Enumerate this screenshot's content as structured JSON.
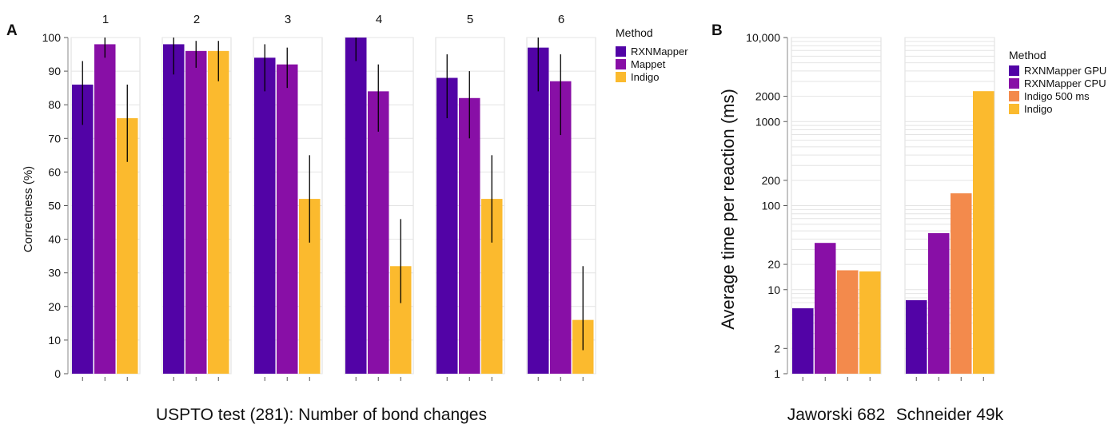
{
  "panels": {
    "a": {
      "letter": "A"
    },
    "b": {
      "letter": "B"
    }
  },
  "chart_data": [
    {
      "type": "bar",
      "title": "",
      "xlabel": "USPTO test (281): Number of bond changes",
      "ylabel": "Correctness (%)",
      "ylim": [
        0,
        100
      ],
      "yticks": [
        0,
        10,
        20,
        30,
        40,
        50,
        60,
        70,
        80,
        90,
        100
      ],
      "grid": true,
      "legend": {
        "title": "Method",
        "position": "right"
      },
      "facets": [
        "1",
        "2",
        "3",
        "4",
        "5",
        "6"
      ],
      "series": [
        {
          "name": "RXNMapper",
          "color": "#5203a6",
          "values": [
            86,
            98,
            94,
            100,
            88,
            97
          ],
          "err_low": [
            74,
            89,
            84,
            93,
            76,
            84
          ],
          "err_high": [
            93,
            100,
            98,
            100,
            95,
            100
          ]
        },
        {
          "name": "Mappet",
          "color": "#880fa6",
          "values": [
            98,
            96,
            92,
            84,
            82,
            87
          ],
          "err_low": [
            94,
            91,
            85,
            72,
            70,
            71
          ],
          "err_high": [
            100,
            99,
            97,
            92,
            90,
            95
          ]
        },
        {
          "name": "Indigo",
          "color": "#fbba2e",
          "values": [
            76,
            96,
            52,
            32,
            52,
            16
          ],
          "err_low": [
            63,
            87,
            39,
            21,
            39,
            7
          ],
          "err_high": [
            86,
            99,
            65,
            46,
            65,
            32
          ]
        }
      ]
    },
    {
      "type": "bar",
      "title": "",
      "xlabel": "",
      "ylabel": "Average time per reaction (ms)",
      "yscale": "log",
      "ylim": [
        1,
        10000
      ],
      "yticks": [
        1,
        2,
        10,
        20,
        100,
        200,
        1000,
        2000,
        10000
      ],
      "ytick_labels": [
        "1",
        "2",
        "10",
        "20",
        "100",
        "200",
        "1000",
        "2000",
        "10,000"
      ],
      "grid": true,
      "legend": {
        "title": "Method",
        "position": "right"
      },
      "facets": [
        "Jaworski 682",
        "Schneider 49k"
      ],
      "series": [
        {
          "name": "RXNMapper GPU",
          "color": "#5203a6",
          "values": [
            6,
            7.5
          ]
        },
        {
          "name": "RXNMapper CPU",
          "color": "#880fa6",
          "values": [
            36,
            47
          ]
        },
        {
          "name": "Indigo 500 ms",
          "color": "#f38a4c",
          "values": [
            17,
            140
          ]
        },
        {
          "name": "Indigo",
          "color": "#fbba2e",
          "values": [
            16.5,
            2300
          ]
        }
      ]
    }
  ]
}
